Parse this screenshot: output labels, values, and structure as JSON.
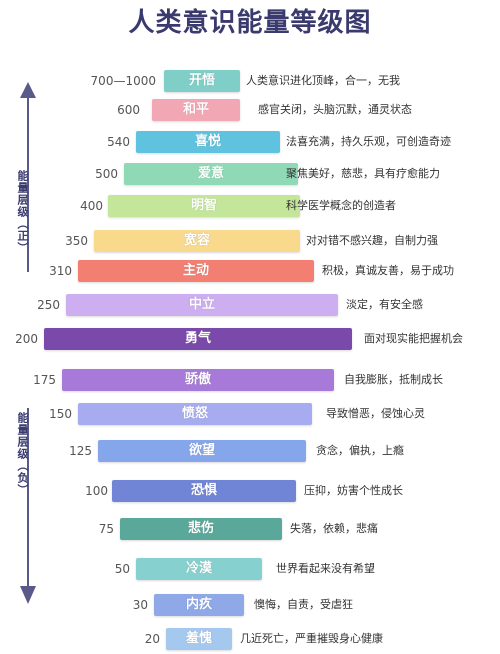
{
  "title": "人类意识能量等级图",
  "side": {
    "positive_label": "能量层级（正）",
    "negative_label": "能量层级（负）",
    "positive_color": "#5a5a8a",
    "negative_color": "#5a5a8a"
  },
  "levels": [
    {
      "value": "700—1000",
      "name": "开悟",
      "desc": "人类意识进化顶峰，合一，无我",
      "color": "#7fcfc8",
      "side": "positive"
    },
    {
      "value": "600",
      "name": "和平",
      "desc": "感官关闭，头脑沉默，通灵状态",
      "color": "#f2a7b5",
      "side": "positive"
    },
    {
      "value": "540",
      "name": "喜悦",
      "desc": "法喜充满，持久乐观，可创造奇迹",
      "color": "#5fc2de",
      "side": "positive"
    },
    {
      "value": "500",
      "name": "爱意",
      "desc": "聚焦美好，慈悲，具有疗愈能力",
      "color": "#8fd9b6",
      "side": "positive"
    },
    {
      "value": "400",
      "name": "明智",
      "desc": "科学医学概念的创造者",
      "color": "#c4e69b",
      "side": "positive"
    },
    {
      "value": "350",
      "name": "宽容",
      "desc": "对对错不感兴趣，自制力强",
      "color": "#f9d98b",
      "side": "positive"
    },
    {
      "value": "310",
      "name": "主动",
      "desc": "积极，真诚友善，易于成功",
      "color": "#f27f72",
      "side": "positive"
    },
    {
      "value": "250",
      "name": "中立",
      "desc": "淡定，有安全感",
      "color": "#cdaef0",
      "side": "neutral"
    },
    {
      "value": "200",
      "name": "勇气",
      "desc": "面对现实能把握机会",
      "color": "#7a4aaa",
      "side": "neutral"
    },
    {
      "value": "175",
      "name": "骄傲",
      "desc": "自我膨胀，抵制成长",
      "color": "#a77ad9",
      "side": "negative"
    },
    {
      "value": "150",
      "name": "愤怒",
      "desc": "导致憎恶，侵蚀心灵",
      "color": "#a6acef",
      "side": "negative"
    },
    {
      "value": "125",
      "name": "欲望",
      "desc": "贪念，偏执，上瘾",
      "color": "#86a6ec",
      "side": "negative"
    },
    {
      "value": "100",
      "name": "恐惧",
      "desc": "压抑，妨害个性成长",
      "color": "#7185d6",
      "side": "negative"
    },
    {
      "value": "75",
      "name": "悲伤",
      "desc": "失落，依赖，悲痛",
      "color": "#5aa89a",
      "side": "negative"
    },
    {
      "value": "50",
      "name": "冷漠",
      "desc": "世界看起来没有希望",
      "color": "#86d1cf",
      "side": "negative"
    },
    {
      "value": "30",
      "name": "内疚",
      "desc": "懊悔，自责，受虐狂",
      "color": "#8fa8e8",
      "side": "negative"
    },
    {
      "value": "20",
      "name": "羞愧",
      "desc": "几近死亡，严重摧毁身心健康",
      "color": "#a5c8ee",
      "side": "negative"
    }
  ]
}
